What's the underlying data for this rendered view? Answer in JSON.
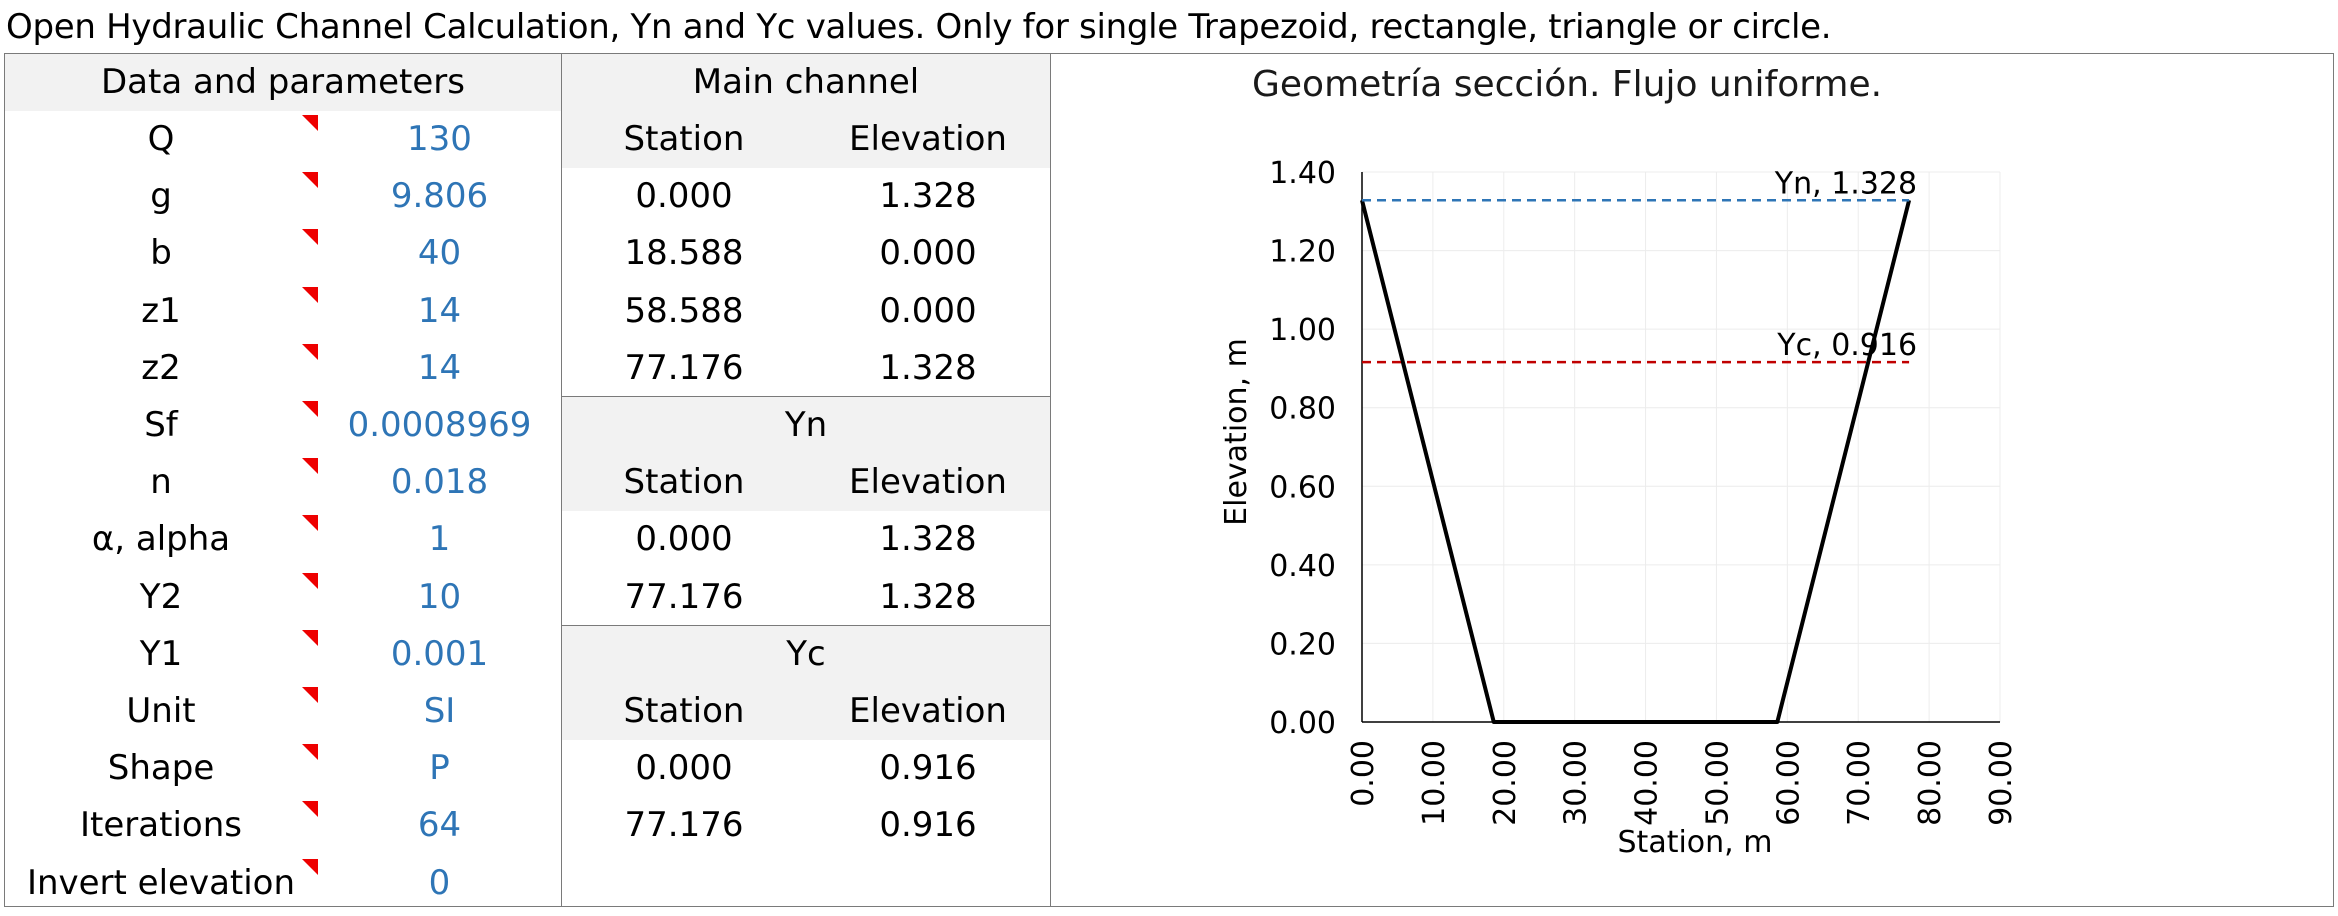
{
  "title": "Open Hydraulic Channel Calculation, Yn and Yc values. Only for single Trapezoid, rectangle, triangle or circle.",
  "parameters": {
    "header": "Data and parameters",
    "rows": [
      {
        "label": "Q",
        "value": "130"
      },
      {
        "label": "g",
        "value": "9.806"
      },
      {
        "label": "b",
        "value": "40"
      },
      {
        "label": "z1",
        "value": "14"
      },
      {
        "label": "z2",
        "value": "14"
      },
      {
        "label": "Sf",
        "value": "0.0008969"
      },
      {
        "label": "n",
        "value": "0.018"
      },
      {
        "label": "α, alpha",
        "value": "1"
      },
      {
        "label": "Y2",
        "value": "10"
      },
      {
        "label": "Y1",
        "value": "0.001"
      },
      {
        "label": "Unit",
        "value": "SI"
      },
      {
        "label": "Shape",
        "value": "P"
      },
      {
        "label": "Iterations",
        "value": "64"
      },
      {
        "label": "Invert elevation",
        "value": "0"
      }
    ]
  },
  "main_channel": {
    "header": "Main channel",
    "col_station": "Station",
    "col_elevation": "Elevation",
    "rows": [
      {
        "station": "0.000",
        "elevation": "1.328"
      },
      {
        "station": "18.588",
        "elevation": "0.000"
      },
      {
        "station": "58.588",
        "elevation": "0.000"
      },
      {
        "station": "77.176",
        "elevation": "1.328"
      }
    ]
  },
  "yn": {
    "header": "Yn",
    "col_station": "Station",
    "col_elevation": "Elevation",
    "rows": [
      {
        "station": "0.000",
        "elevation": "1.328"
      },
      {
        "station": "77.176",
        "elevation": "1.328"
      }
    ]
  },
  "yc": {
    "header": "Yc",
    "col_station": "Station",
    "col_elevation": "Elevation",
    "rows": [
      {
        "station": "0.000",
        "elevation": "0.916"
      },
      {
        "station": "77.176",
        "elevation": "0.916"
      }
    ]
  },
  "colors": {
    "value_text": "#2e75b6",
    "flag": "#ee0000",
    "yn_line": "#2e75b6",
    "yc_line": "#c00000",
    "channel_line": "#000000",
    "header_shade": "#f2f2f2"
  },
  "chart_data": {
    "type": "line",
    "title": "Geometría sección. Flujo uniforme.",
    "xlabel": "Station, m",
    "ylabel": "Elevation, m",
    "xlim": [
      0,
      90
    ],
    "ylim": [
      0,
      1.4
    ],
    "x_ticks": [
      "0.00",
      "10.00",
      "20.00",
      "30.00",
      "40.00",
      "50.00",
      "60.00",
      "70.00",
      "80.00",
      "90.00"
    ],
    "y_ticks": [
      "0.00",
      "0.20",
      "0.40",
      "0.60",
      "0.80",
      "1.00",
      "1.20",
      "1.40"
    ],
    "grid": true,
    "legend": "none",
    "series": [
      {
        "x": [
          0,
          18.588,
          58.588,
          77.176
        ],
        "y": [
          1.328,
          0,
          0,
          1.328
        ],
        "color": "#000000",
        "style": "solid"
      },
      {
        "x": [
          0,
          77.176
        ],
        "y": [
          1.328,
          1.328
        ],
        "color": "#2e75b6",
        "style": "dashed",
        "label": "Yn, 1.328"
      },
      {
        "x": [
          0,
          77.176
        ],
        "y": [
          0.916,
          0.916
        ],
        "color": "#c00000",
        "style": "dashed",
        "label": "Yc, 0.916"
      }
    ]
  }
}
